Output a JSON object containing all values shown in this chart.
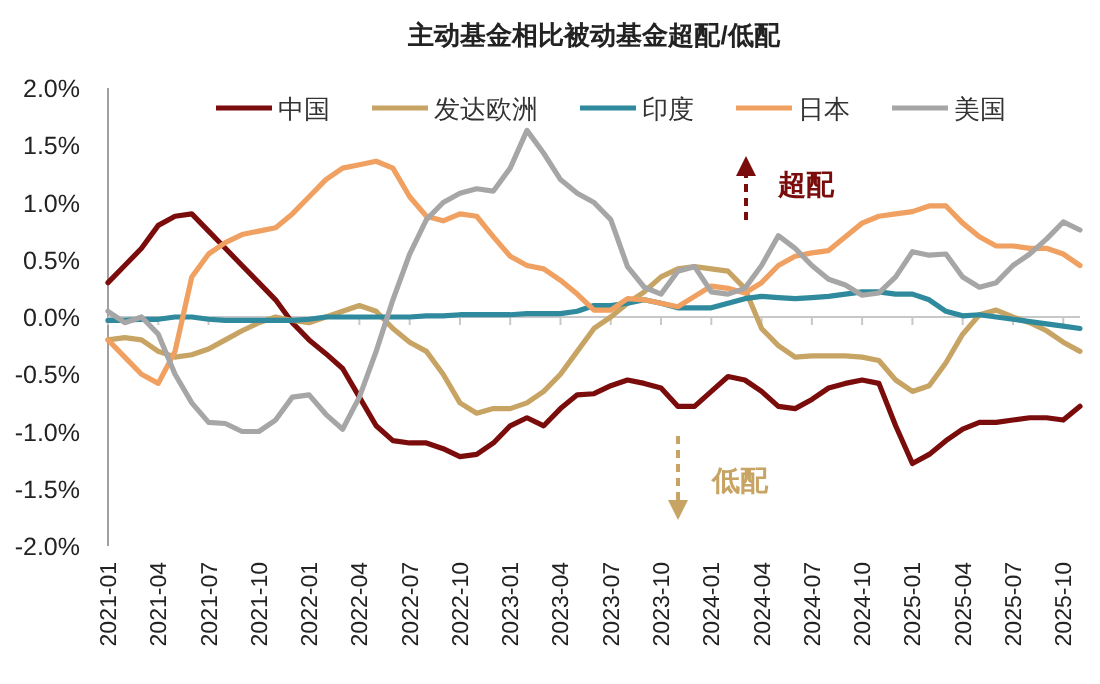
{
  "chart_data": {
    "type": "line",
    "title": "主动基金相比被动基金超配/低配",
    "x": [
      "2021-01",
      "2021-02",
      "2021-03",
      "2021-04",
      "2021-05",
      "2021-06",
      "2021-07",
      "2021-08",
      "2021-09",
      "2021-10",
      "2021-11",
      "2021-12",
      "2022-01",
      "2022-02",
      "2022-03",
      "2022-04",
      "2022-05",
      "2022-06",
      "2022-07",
      "2022-08",
      "2022-09",
      "2022-10",
      "2022-11",
      "2022-12",
      "2023-01",
      "2023-02",
      "2023-03",
      "2023-04",
      "2023-05",
      "2023-06",
      "2023-07",
      "2023-08",
      "2023-09",
      "2023-10",
      "2023-11",
      "2023-12",
      "2024-01",
      "2024-02",
      "2024-03",
      "2024-04",
      "2024-05",
      "2024-06",
      "2024-07",
      "2024-08",
      "2024-09",
      "2024-10",
      "2024-11",
      "2024-12",
      "2025-01",
      "2025-02",
      "2025-03",
      "2025-04",
      "2025-05",
      "2025-06",
      "2025-07",
      "2025-08",
      "2025-09",
      "2025-10",
      "2025-11"
    ],
    "series": [
      {
        "name": "中国",
        "color": "#7b0c0c",
        "values": [
          0.3,
          0.45,
          0.6,
          0.8,
          0.88,
          0.9,
          0.75,
          0.6,
          0.45,
          0.3,
          0.15,
          -0.05,
          -0.2,
          -0.32,
          -0.45,
          -0.7,
          -0.95,
          -1.08,
          -1.1,
          -1.1,
          -1.15,
          -1.22,
          -1.2,
          -1.1,
          -0.95,
          -0.88,
          -0.95,
          -0.8,
          -0.68,
          -0.67,
          -0.6,
          -0.55,
          -0.58,
          -0.62,
          -0.78,
          -0.78,
          -0.65,
          -0.52,
          -0.55,
          -0.65,
          -0.78,
          -0.8,
          -0.72,
          -0.62,
          -0.58,
          -0.55,
          -0.58,
          -0.95,
          -1.28,
          -1.2,
          -1.08,
          -0.98,
          -0.92,
          -0.92,
          -0.9,
          -0.88,
          -0.88,
          -0.9,
          -0.78
        ]
      },
      {
        "name": "发达欧洲",
        "color": "#c8a464",
        "values": [
          -0.2,
          -0.18,
          -0.2,
          -0.3,
          -0.35,
          -0.33,
          -0.28,
          -0.2,
          -0.12,
          -0.05,
          0.0,
          -0.03,
          -0.05,
          0.0,
          0.05,
          0.1,
          0.05,
          -0.1,
          -0.22,
          -0.3,
          -0.5,
          -0.75,
          -0.84,
          -0.8,
          -0.8,
          -0.75,
          -0.65,
          -0.5,
          -0.3,
          -0.1,
          0.0,
          0.12,
          0.22,
          0.35,
          0.42,
          0.44,
          0.42,
          0.4,
          0.25,
          -0.1,
          -0.25,
          -0.35,
          -0.34,
          -0.34,
          -0.34,
          -0.35,
          -0.38,
          -0.55,
          -0.65,
          -0.6,
          -0.4,
          -0.15,
          0.02,
          0.06,
          0.0,
          -0.05,
          -0.12,
          -0.22,
          -0.3
        ]
      },
      {
        "name": "印度",
        "color": "#2e8a9c",
        "values": [
          -0.03,
          -0.03,
          -0.02,
          -0.02,
          0.0,
          0.0,
          -0.02,
          -0.03,
          -0.03,
          -0.03,
          -0.03,
          -0.03,
          -0.02,
          0.0,
          0.0,
          0.0,
          0.0,
          0.0,
          0.0,
          0.01,
          0.01,
          0.02,
          0.02,
          0.02,
          0.02,
          0.03,
          0.03,
          0.03,
          0.05,
          0.1,
          0.1,
          0.12,
          0.15,
          0.12,
          0.08,
          0.08,
          0.08,
          0.12,
          0.16,
          0.18,
          0.17,
          0.16,
          0.17,
          0.18,
          0.2,
          0.22,
          0.22,
          0.2,
          0.2,
          0.15,
          0.05,
          0.01,
          0.02,
          0.0,
          -0.02,
          -0.04,
          -0.06,
          -0.08,
          -0.1
        ]
      },
      {
        "name": "日本",
        "color": "#f0a060",
        "values": [
          -0.2,
          -0.35,
          -0.5,
          -0.58,
          -0.3,
          0.35,
          0.55,
          0.65,
          0.72,
          0.75,
          0.78,
          0.9,
          1.05,
          1.2,
          1.3,
          1.33,
          1.36,
          1.3,
          1.05,
          0.88,
          0.84,
          0.9,
          0.88,
          0.7,
          0.53,
          0.45,
          0.42,
          0.32,
          0.2,
          0.06,
          0.06,
          0.16,
          0.15,
          0.12,
          0.09,
          0.18,
          0.27,
          0.25,
          0.21,
          0.3,
          0.45,
          0.53,
          0.56,
          0.58,
          0.7,
          0.82,
          0.88,
          0.9,
          0.92,
          0.97,
          0.97,
          0.82,
          0.7,
          0.62,
          0.62,
          0.6,
          0.6,
          0.55,
          0.45
        ]
      },
      {
        "name": "美国",
        "color": "#a6a6a6",
        "values": [
          0.05,
          -0.05,
          0.0,
          -0.15,
          -0.5,
          -0.75,
          -0.92,
          -0.93,
          -1.0,
          -1.0,
          -0.9,
          -0.7,
          -0.68,
          -0.85,
          -0.98,
          -0.7,
          -0.3,
          0.15,
          0.55,
          0.85,
          1.0,
          1.08,
          1.12,
          1.1,
          1.3,
          1.63,
          1.43,
          1.2,
          1.08,
          1.0,
          0.85,
          0.44,
          0.26,
          0.2,
          0.4,
          0.44,
          0.22,
          0.2,
          0.25,
          0.45,
          0.71,
          0.6,
          0.45,
          0.33,
          0.28,
          0.19,
          0.21,
          0.35,
          0.57,
          0.54,
          0.55,
          0.35,
          0.26,
          0.3,
          0.45,
          0.55,
          0.68,
          0.83,
          0.76
        ]
      }
    ],
    "xlim": [
      "2021-01",
      "2025-11"
    ],
    "xticks": [
      "2021-01",
      "2021-04",
      "2021-07",
      "2021-10",
      "2022-01",
      "2022-04",
      "2022-07",
      "2022-10",
      "2023-01",
      "2023-04",
      "2023-07",
      "2023-10",
      "2024-01",
      "2024-04",
      "2024-07",
      "2024-10",
      "2025-01",
      "2025-04",
      "2025-07",
      "2025-10"
    ],
    "ylim": [
      -2,
      2
    ],
    "yticks": [
      {
        "value": -2,
        "label": "-2.0%"
      },
      {
        "value": -1.5,
        "label": "-1.5%"
      },
      {
        "value": -1,
        "label": "-1.0%"
      },
      {
        "value": -0.5,
        "label": "-0.5%"
      },
      {
        "value": 0,
        "label": "0.0%"
      },
      {
        "value": 0.5,
        "label": "0.5%"
      },
      {
        "value": 1,
        "label": "1.0%"
      },
      {
        "value": 1.5,
        "label": "1.5%"
      },
      {
        "value": 2,
        "label": "2.0%"
      }
    ],
    "annotations": [
      "超配",
      "低配"
    ],
    "legend": "top",
    "marker": "none",
    "line_style": "solid"
  }
}
